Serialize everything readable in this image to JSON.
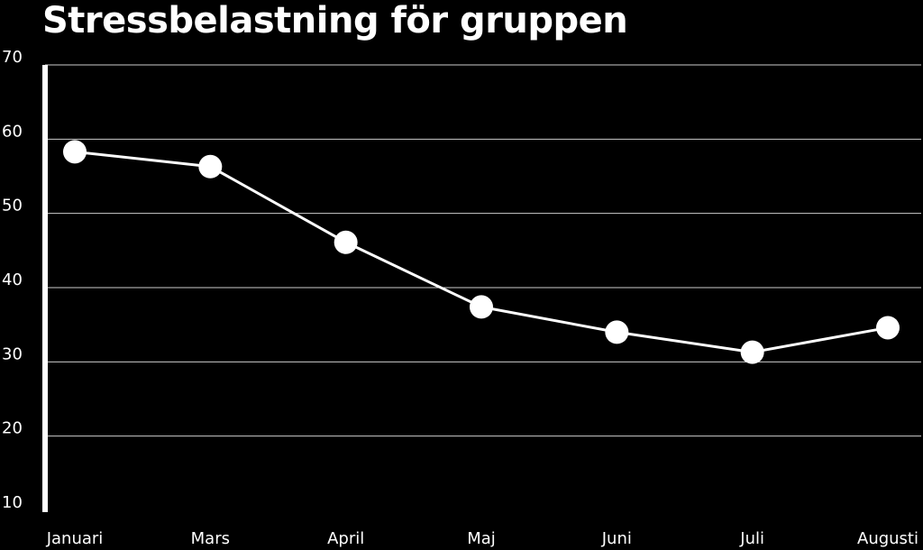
{
  "chart_data": {
    "type": "line",
    "title": "Stressbelastning för gruppen",
    "xlabel": "",
    "ylabel": "",
    "categories": [
      "Januari",
      "Mars",
      "April",
      "Maj",
      "Juni",
      "Juli",
      "Augusti"
    ],
    "series": [
      {
        "values": [
          58.3,
          56.3,
          46.1,
          37.4,
          34.0,
          31.3,
          34.6
        ]
      }
    ],
    "ylim": [
      10,
      70
    ],
    "yticks": [
      70,
      60,
      50,
      40,
      30,
      20,
      10
    ],
    "grid": true,
    "legend": "none",
    "colors": {
      "background": "#000000",
      "line": "#ffffff",
      "marker": "#ffffff",
      "grid": "#cccccc",
      "text": "#ffffff"
    }
  }
}
